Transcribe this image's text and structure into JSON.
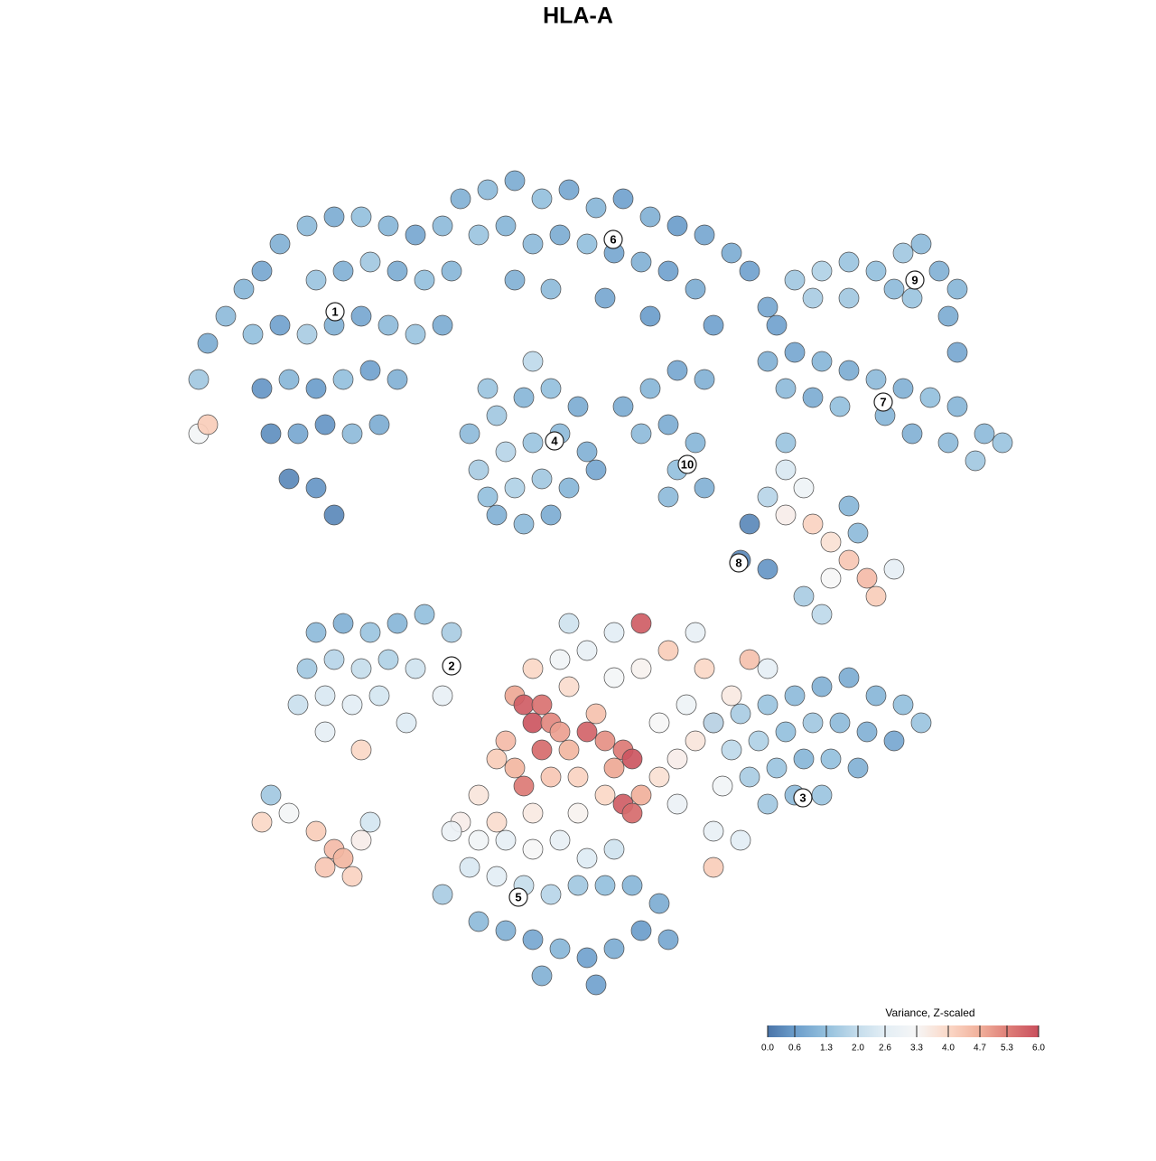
{
  "chart_data": {
    "type": "scatter",
    "title": "HLA-A",
    "xlim": [
      0,
      100
    ],
    "ylim": [
      0,
      100
    ],
    "points": [
      [
        8,
        72,
        0.9
      ],
      [
        10,
        75,
        1.2
      ],
      [
        7,
        68,
        1.5
      ],
      [
        12,
        78,
        1.1
      ],
      [
        14,
        80,
        0.8
      ],
      [
        16,
        83,
        1.0
      ],
      [
        19,
        85,
        1.2
      ],
      [
        22,
        86,
        0.9
      ],
      [
        25,
        86,
        1.3
      ],
      [
        28,
        85,
        1.1
      ],
      [
        31,
        84,
        0.8
      ],
      [
        34,
        85,
        1.2
      ],
      [
        20,
        79,
        1.4
      ],
      [
        23,
        80,
        1.0
      ],
      [
        26,
        81,
        1.5
      ],
      [
        29,
        80,
        0.9
      ],
      [
        32,
        79,
        1.3
      ],
      [
        35,
        80,
        1.1
      ],
      [
        13,
        73,
        1.3
      ],
      [
        16,
        74,
        0.7
      ],
      [
        19,
        73,
        1.6
      ],
      [
        22,
        74,
        1.0
      ],
      [
        25,
        75,
        0.8
      ],
      [
        28,
        74,
        1.2
      ],
      [
        31,
        73,
        1.4
      ],
      [
        34,
        74,
        0.9
      ],
      [
        14,
        67,
        0.5
      ],
      [
        17,
        68,
        1.1
      ],
      [
        20,
        67,
        0.6
      ],
      [
        23,
        68,
        1.3
      ],
      [
        26,
        69,
        0.7
      ],
      [
        29,
        68,
        1.0
      ],
      [
        15,
        62,
        0.4
      ],
      [
        18,
        62,
        0.8
      ],
      [
        21,
        63,
        0.5
      ],
      [
        24,
        62,
        1.2
      ],
      [
        17,
        57,
        0.3
      ],
      [
        20,
        56,
        0.5
      ],
      [
        22,
        53,
        0.3
      ],
      [
        7,
        62,
        3.2
      ],
      [
        8,
        63,
        4.2
      ],
      [
        27,
        63,
        0.9
      ],
      [
        36,
        88,
        1.0
      ],
      [
        39,
        89,
        1.2
      ],
      [
        42,
        90,
        0.9
      ],
      [
        45,
        88,
        1.3
      ],
      [
        48,
        89,
        0.8
      ],
      [
        51,
        87,
        1.1
      ],
      [
        54,
        88,
        0.7
      ],
      [
        57,
        86,
        1.0
      ],
      [
        60,
        85,
        0.6
      ],
      [
        63,
        84,
        0.8
      ],
      [
        66,
        82,
        0.9
      ],
      [
        68,
        80,
        0.7
      ],
      [
        38,
        84,
        1.4
      ],
      [
        41,
        85,
        1.1
      ],
      [
        44,
        83,
        1.2
      ],
      [
        47,
        84,
        0.9
      ],
      [
        50,
        83,
        1.3
      ],
      [
        53,
        82,
        0.8
      ],
      [
        56,
        81,
        1.0
      ],
      [
        59,
        80,
        0.7
      ],
      [
        62,
        78,
        0.9
      ],
      [
        42,
        79,
        1.0
      ],
      [
        46,
        78,
        1.2
      ],
      [
        52,
        77,
        0.8
      ],
      [
        57,
        75,
        0.6
      ],
      [
        64,
        74,
        0.7
      ],
      [
        70,
        76,
        0.8
      ],
      [
        37,
        62,
        1.2
      ],
      [
        40,
        64,
        1.5
      ],
      [
        43,
        66,
        1.1
      ],
      [
        46,
        67,
        1.3
      ],
      [
        49,
        65,
        0.9
      ],
      [
        38,
        58,
        1.6
      ],
      [
        41,
        60,
        1.8
      ],
      [
        44,
        61,
        1.4
      ],
      [
        47,
        62,
        1.2
      ],
      [
        50,
        60,
        1.0
      ],
      [
        39,
        55,
        1.3
      ],
      [
        42,
        56,
        1.7
      ],
      [
        45,
        57,
        1.5
      ],
      [
        48,
        56,
        1.1
      ],
      [
        51,
        58,
        0.8
      ],
      [
        40,
        53,
        1.0
      ],
      [
        43,
        52,
        1.2
      ],
      [
        46,
        53,
        0.9
      ],
      [
        44,
        70,
        1.9
      ],
      [
        39,
        67,
        1.4
      ],
      [
        54,
        65,
        0.9
      ],
      [
        57,
        67,
        1.1
      ],
      [
        60,
        69,
        0.8
      ],
      [
        63,
        68,
        1.0
      ],
      [
        56,
        62,
        1.2
      ],
      [
        59,
        63,
        0.9
      ],
      [
        62,
        61,
        1.1
      ],
      [
        60,
        58,
        1.3
      ],
      [
        63,
        56,
        1.0
      ],
      [
        59,
        55,
        1.2
      ],
      [
        73,
        79,
        1.5
      ],
      [
        76,
        80,
        1.7
      ],
      [
        79,
        81,
        1.4
      ],
      [
        82,
        80,
        1.3
      ],
      [
        85,
        82,
        1.5
      ],
      [
        87,
        83,
        1.2
      ],
      [
        89,
        80,
        1.0
      ],
      [
        91,
        78,
        1.1
      ],
      [
        90,
        75,
        0.9
      ],
      [
        84,
        78,
        1.2
      ],
      [
        86,
        77,
        1.4
      ],
      [
        75,
        77,
        1.6
      ],
      [
        79,
        77,
        1.5
      ],
      [
        91,
        71,
        0.8
      ],
      [
        70,
        70,
        1.0
      ],
      [
        73,
        71,
        0.8
      ],
      [
        76,
        70,
        1.1
      ],
      [
        79,
        69,
        0.9
      ],
      [
        82,
        68,
        1.2
      ],
      [
        85,
        67,
        1.0
      ],
      [
        88,
        66,
        1.3
      ],
      [
        91,
        65,
        1.1
      ],
      [
        94,
        62,
        1.2
      ],
      [
        96,
        61,
        1.4
      ],
      [
        72,
        67,
        1.2
      ],
      [
        75,
        66,
        0.9
      ],
      [
        78,
        65,
        1.3
      ],
      [
        83,
        64,
        1.1
      ],
      [
        86,
        62,
        1.0
      ],
      [
        90,
        61,
        1.2
      ],
      [
        93,
        59,
        1.5
      ],
      [
        71,
        74,
        0.7
      ],
      [
        68,
        52,
        0.3
      ],
      [
        70,
        55,
        1.8
      ],
      [
        72,
        58,
        2.4
      ],
      [
        74,
        56,
        3.0
      ],
      [
        72,
        53,
        3.5
      ],
      [
        75,
        52,
        4.1
      ],
      [
        77,
        50,
        3.8
      ],
      [
        79,
        48,
        4.3
      ],
      [
        81,
        46,
        4.5
      ],
      [
        82,
        44,
        4.2
      ],
      [
        80,
        51,
        1.2
      ],
      [
        77,
        46,
        3.3
      ],
      [
        74,
        44,
        1.6
      ],
      [
        76,
        42,
        1.9
      ],
      [
        67,
        48,
        0.3
      ],
      [
        70,
        47,
        0.5
      ],
      [
        79,
        54,
        1.1
      ],
      [
        84,
        47,
        2.7
      ],
      [
        72,
        61,
        1.4
      ],
      [
        20,
        40,
        1.2
      ],
      [
        23,
        41,
        1.0
      ],
      [
        26,
        40,
        1.4
      ],
      [
        29,
        41,
        1.1
      ],
      [
        32,
        42,
        1.3
      ],
      [
        35,
        40,
        1.6
      ],
      [
        19,
        36,
        1.5
      ],
      [
        22,
        37,
        1.8
      ],
      [
        25,
        36,
        2.0
      ],
      [
        28,
        37,
        1.7
      ],
      [
        31,
        36,
        2.2
      ],
      [
        18,
        32,
        2.1
      ],
      [
        21,
        33,
        2.4
      ],
      [
        24,
        32,
        2.6
      ],
      [
        27,
        33,
        2.3
      ],
      [
        21,
        29,
        2.7
      ],
      [
        25,
        27,
        4.0
      ],
      [
        30,
        30,
        2.5
      ],
      [
        34,
        33,
        2.8
      ],
      [
        42,
        33,
        4.8
      ],
      [
        43,
        32,
        5.8
      ],
      [
        45,
        32,
        5.5
      ],
      [
        44,
        30,
        5.9
      ],
      [
        46,
        30,
        5.2
      ],
      [
        47,
        29,
        4.9
      ],
      [
        45,
        27,
        5.6
      ],
      [
        48,
        27,
        4.6
      ],
      [
        50,
        29,
        5.7
      ],
      [
        51,
        31,
        4.4
      ],
      [
        52,
        28,
        5.1
      ],
      [
        54,
        27,
        5.4
      ],
      [
        53,
        25,
        4.8
      ],
      [
        55,
        26,
        5.9
      ],
      [
        41,
        28,
        4.5
      ],
      [
        40,
        26,
        4.2
      ],
      [
        42,
        25,
        4.6
      ],
      [
        43,
        23,
        5.4
      ],
      [
        46,
        24,
        4.3
      ],
      [
        49,
        24,
        4.1
      ],
      [
        52,
        22,
        4.0
      ],
      [
        54,
        21,
        5.8
      ],
      [
        55,
        20,
        5.6
      ],
      [
        56,
        22,
        4.7
      ],
      [
        58,
        24,
        3.8
      ],
      [
        60,
        26,
        3.5
      ],
      [
        62,
        28,
        3.7
      ],
      [
        64,
        30,
        4.3
      ],
      [
        66,
        33,
        3.6
      ],
      [
        68,
        37,
        4.4
      ],
      [
        63,
        36,
        4.0
      ],
      [
        59,
        38,
        4.2
      ],
      [
        56,
        41,
        5.8
      ],
      [
        56,
        36,
        3.4
      ],
      [
        53,
        35,
        3.2
      ],
      [
        50,
        38,
        2.8
      ],
      [
        47,
        37,
        3.1
      ],
      [
        44,
        36,
        4.0
      ],
      [
        61,
        32,
        3.0
      ],
      [
        58,
        30,
        3.3
      ],
      [
        48,
        34,
        3.9
      ],
      [
        38,
        22,
        3.7
      ],
      [
        36,
        19,
        3.5
      ],
      [
        40,
        19,
        3.9
      ],
      [
        44,
        20,
        3.6
      ],
      [
        49,
        20,
        3.4
      ],
      [
        65,
        23,
        3.1
      ],
      [
        60,
        21,
        2.9
      ],
      [
        53,
        40,
        2.6
      ],
      [
        48,
        41,
        2.2
      ],
      [
        62,
        40,
        2.8
      ],
      [
        70,
        36,
        2.7
      ],
      [
        64,
        30,
        1.8
      ],
      [
        67,
        31,
        1.6
      ],
      [
        70,
        32,
        1.4
      ],
      [
        73,
        33,
        1.2
      ],
      [
        76,
        34,
        1.0
      ],
      [
        79,
        35,
        0.9
      ],
      [
        82,
        33,
        1.1
      ],
      [
        85,
        32,
        1.3
      ],
      [
        87,
        30,
        1.4
      ],
      [
        66,
        27,
        1.9
      ],
      [
        69,
        28,
        1.7
      ],
      [
        72,
        29,
        1.3
      ],
      [
        75,
        30,
        1.5
      ],
      [
        78,
        30,
        1.2
      ],
      [
        81,
        29,
        1.0
      ],
      [
        84,
        28,
        0.8
      ],
      [
        68,
        24,
        1.6
      ],
      [
        71,
        25,
        1.4
      ],
      [
        74,
        26,
        1.1
      ],
      [
        77,
        26,
        1.3
      ],
      [
        80,
        25,
        1.0
      ],
      [
        70,
        21,
        1.5
      ],
      [
        73,
        22,
        1.2
      ],
      [
        76,
        22,
        1.4
      ],
      [
        64,
        18,
        2.8
      ],
      [
        67,
        17,
        2.6
      ],
      [
        64,
        14,
        4.2
      ],
      [
        35,
        18,
        2.9
      ],
      [
        38,
        17,
        3.1
      ],
      [
        41,
        17,
        2.7
      ],
      [
        44,
        16,
        3.3
      ],
      [
        47,
        17,
        2.8
      ],
      [
        50,
        15,
        2.5
      ],
      [
        53,
        16,
        2.2
      ],
      [
        37,
        14,
        2.4
      ],
      [
        40,
        13,
        2.6
      ],
      [
        43,
        12,
        2.0
      ],
      [
        46,
        11,
        1.8
      ],
      [
        49,
        12,
        1.5
      ],
      [
        52,
        12,
        1.3
      ],
      [
        55,
        12,
        1.1
      ],
      [
        58,
        10,
        0.9
      ],
      [
        38,
        8,
        1.2
      ],
      [
        41,
        7,
        1.0
      ],
      [
        44,
        6,
        0.8
      ],
      [
        47,
        5,
        1.1
      ],
      [
        50,
        4,
        0.7
      ],
      [
        53,
        5,
        0.9
      ],
      [
        56,
        7,
        0.6
      ],
      [
        59,
        6,
        0.8
      ],
      [
        45,
        2,
        1.0
      ],
      [
        51,
        1,
        0.7
      ],
      [
        34,
        11,
        1.6
      ],
      [
        14,
        19,
        4.0
      ],
      [
        17,
        20,
        3.2
      ],
      [
        15,
        22,
        1.5
      ],
      [
        20,
        18,
        4.2
      ],
      [
        22,
        16,
        4.5
      ],
      [
        21,
        14,
        4.3
      ],
      [
        23,
        15,
        4.6
      ],
      [
        25,
        17,
        3.5
      ],
      [
        26,
        19,
        2.3
      ],
      [
        24,
        13,
        4.1
      ]
    ],
    "annotations": [
      {
        "text": "1",
        "x": 22.1,
        "y": 75.5
      },
      {
        "text": "2",
        "x": 35,
        "y": 36.3
      },
      {
        "text": "3",
        "x": 73.9,
        "y": 21.7
      },
      {
        "text": "4",
        "x": 46.4,
        "y": 61.2
      },
      {
        "text": "5",
        "x": 42.4,
        "y": 10.7
      },
      {
        "text": "6",
        "x": 52.9,
        "y": 83.5
      },
      {
        "text": "7",
        "x": 82.8,
        "y": 65.5
      },
      {
        "text": "8",
        "x": 66.8,
        "y": 47.7
      },
      {
        "text": "9",
        "x": 86.3,
        "y": 79
      },
      {
        "text": "10",
        "x": 61.1,
        "y": 58.6
      }
    ],
    "colorbar": {
      "title": "Variance, Z-scaled",
      "lim": [
        0,
        6
      ],
      "ticks": [
        {
          "value": 0,
          "label": "0.0"
        },
        0.6,
        1.3,
        {
          "value": 2,
          "label": "2.0"
        },
        2.6,
        3.3,
        {
          "value": 4,
          "label": "4.0"
        },
        4.7,
        5.3,
        {
          "value": 6,
          "label": "6.0"
        }
      ],
      "colors": [
        "#4a74a8",
        "#6b9dcb",
        "#94c0dd",
        "#c5ddec",
        "#e3eef5",
        "#f6f6f6",
        "#fbd8c7",
        "#f1b09b",
        "#df8079",
        "#c94f5d"
      ]
    }
  }
}
